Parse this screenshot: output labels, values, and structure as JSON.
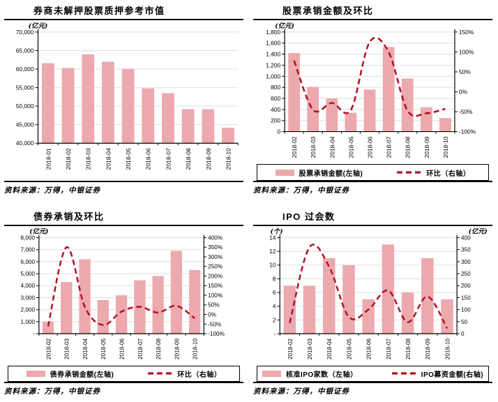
{
  "source_note": "资料来源：万得，中银证券",
  "colors": {
    "bar_fill": "#ECA9AE",
    "line_stroke": "#B11226",
    "gridline": "#DEDEDE",
    "axis": "#000000",
    "text": "#000000",
    "legend_border": "#000000"
  },
  "chart_data": [
    {
      "type": "bar",
      "title": "券商未解押股票质押参考市值",
      "unit_left": "(亿元)",
      "unit_right": null,
      "categories": [
        "2018-01",
        "2018-02",
        "2018-03",
        "2018-04",
        "2018-05",
        "2018-06",
        "2018-07",
        "2018-08",
        "2018-09",
        "2018-10"
      ],
      "series": [
        {
          "name": "券商未解押股票质押参考市值",
          "type": "bar",
          "axis": "left",
          "values": [
            61600,
            60300,
            64000,
            62000,
            60100,
            54800,
            53500,
            49200,
            49200,
            44200
          ]
        }
      ],
      "left_axis": {
        "min": 40000,
        "max": 70000,
        "step": 5000,
        "tick_labels": [
          "70,000",
          "65,000",
          "60,000",
          "55,000",
          "50,000",
          "45,000",
          "40,000"
        ]
      },
      "right_axis": null,
      "legend": null,
      "grid": true
    },
    {
      "type": "bar-line",
      "title": "股票承销金额及环比",
      "unit_left": "(亿元)",
      "unit_right": null,
      "categories": [
        "2018-02",
        "2018-03",
        "2018-04",
        "2018-05",
        "2018-06",
        "2018-07",
        "2018-08",
        "2018-09",
        "2018-10"
      ],
      "series": [
        {
          "name": "股票承销金额(左轴)",
          "type": "bar",
          "axis": "left",
          "values": [
            1420,
            810,
            600,
            340,
            760,
            1530,
            960,
            440,
            245
          ]
        },
        {
          "name": "环比（右轴）",
          "type": "line",
          "axis": "right",
          "values": [
            78,
            -45,
            -28,
            -46,
            125,
            100,
            -47,
            -54,
            -43
          ]
        }
      ],
      "left_axis": {
        "min": 0,
        "max": 1800,
        "step": 200,
        "tick_labels": [
          "1,800",
          "1,600",
          "1,400",
          "1,200",
          "1,000",
          "800",
          "600",
          "400",
          "200",
          "0"
        ]
      },
      "right_axis": {
        "min": -100,
        "max": 150,
        "step": 50,
        "tick_labels": [
          "150%",
          "100%",
          "50%",
          "0%",
          "-50%",
          "-100%"
        ]
      },
      "legend": [
        {
          "marker": "bar",
          "label": "股票承销金额(左轴)"
        },
        {
          "marker": "line",
          "label": "环比（右轴）"
        }
      ],
      "grid": true
    },
    {
      "type": "bar-line",
      "title": "债券承销及环比",
      "unit_left": "(亿元)",
      "unit_right": null,
      "categories": [
        "2018-02",
        "2018-03",
        "2018-04",
        "2018-05",
        "2018-06",
        "2018-07",
        "2018-08",
        "2018-09",
        "2018-10"
      ],
      "series": [
        {
          "name": "债券承销金额(左轴)",
          "type": "bar",
          "axis": "left",
          "values": [
            1000,
            4300,
            6200,
            2800,
            3200,
            4450,
            4800,
            6900,
            5300
          ]
        },
        {
          "name": "环比（右轴）",
          "type": "line",
          "axis": "right",
          "values": [
            -62,
            350,
            40,
            -55,
            15,
            40,
            10,
            45,
            -20
          ]
        }
      ],
      "left_axis": {
        "min": 0,
        "max": 8000,
        "step": 1000,
        "tick_labels": [
          "8,000",
          "7,000",
          "6,000",
          "5,000",
          "4,000",
          "3,000",
          "2,000",
          "1,000",
          "-"
        ]
      },
      "right_axis": {
        "min": -100,
        "max": 400,
        "step": 50,
        "tick_labels": [
          "400%",
          "350%",
          "300%",
          "250%",
          "200%",
          "150%",
          "100%",
          "50%",
          "0%",
          "-50%",
          "-100%"
        ]
      },
      "legend": [
        {
          "marker": "bar",
          "label": "债券承销金额(左轴)"
        },
        {
          "marker": "line",
          "label": "环比（右轴）"
        }
      ],
      "grid": true
    },
    {
      "type": "bar-line",
      "title": "IPO 过会数",
      "unit_left": "(个)",
      "unit_right": "(亿元)",
      "categories": [
        "2018-02",
        "2018-03",
        "2018-04",
        "2018-05",
        "2018-06",
        "2018-07",
        "2018-08",
        "2018-09",
        "2018-10"
      ],
      "series": [
        {
          "name": "核准IPO家数（左轴）",
          "type": "bar",
          "axis": "left",
          "values": [
            7,
            7,
            11,
            10,
            5,
            13,
            6,
            11,
            5
          ]
        },
        {
          "name": "IPO募资金额(右轴)",
          "type": "line",
          "axis": "right",
          "values": [
            45,
            360,
            280,
            70,
            100,
            180,
            48,
            155,
            22
          ]
        }
      ],
      "left_axis": {
        "min": 0,
        "max": 14,
        "step": 2,
        "tick_labels": [
          "14",
          "12",
          "10",
          "8",
          "6",
          "4",
          "2",
          "-"
        ]
      },
      "right_axis": {
        "min": 0,
        "max": 400,
        "step": 50,
        "tick_labels": [
          "400",
          "350",
          "300",
          "250",
          "200",
          "150",
          "100",
          "50",
          "0"
        ]
      },
      "legend": [
        {
          "marker": "bar",
          "label": "核准IPO家数（左轴）"
        },
        {
          "marker": "line",
          "label": "IPO募资金额(右轴)"
        }
      ],
      "grid": true
    }
  ]
}
